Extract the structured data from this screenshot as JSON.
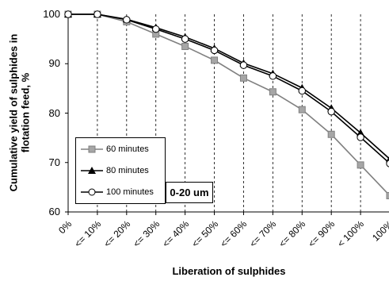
{
  "chart_data": {
    "type": "line",
    "title": "",
    "xlabel": "Liberation of sulphides",
    "ylabel": [
      "Cumulative yield of sulphides in",
      "flotation feed, %"
    ],
    "categories": [
      "0%",
      "<= 10%",
      "<= 20%",
      "<= 30%",
      "<= 40%",
      "<= 50%",
      "<= 60%",
      "<= 70%",
      "<= 80%",
      "<= 90%",
      "< 100%",
      "100%"
    ],
    "ylim": [
      60,
      100
    ],
    "yticks": [
      60,
      70,
      80,
      90,
      100
    ],
    "grid": {
      "horizontal": false,
      "vertical": true
    },
    "legend_placement": "bottom-left",
    "annotation": "0-20 um",
    "series": [
      {
        "name": "60 minutes",
        "marker": "square",
        "color": "#808080",
        "marker_fill": "#a6a6a6",
        "values": [
          100,
          100,
          98.5,
          96,
          93.5,
          90.7,
          87.1,
          84.3,
          80.7,
          75.7,
          69.5,
          63.3
        ]
      },
      {
        "name": "80 minutes",
        "marker": "triangle",
        "color": "#000000",
        "marker_fill": "#000000",
        "values": [
          100,
          100,
          99,
          97.3,
          95.4,
          93.1,
          90.1,
          88,
          85.1,
          81,
          76,
          70.7
        ]
      },
      {
        "name": "100 minutes",
        "marker": "circle",
        "color": "#000000",
        "marker_fill": "#ffffff",
        "values": [
          100,
          100,
          98.9,
          97,
          95,
          92.7,
          89.7,
          87.5,
          84.5,
          80.3,
          75.1,
          69.8
        ]
      }
    ]
  }
}
